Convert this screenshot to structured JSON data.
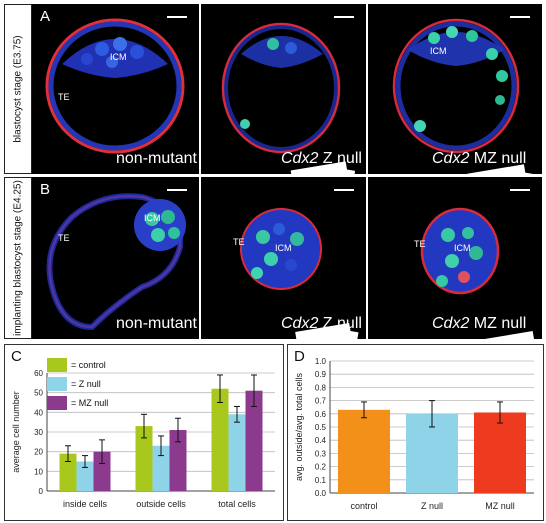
{
  "row_a": {
    "side_label": "blastocyst stage (E3.75)",
    "letter": "A",
    "panels": [
      {
        "caption_italic": "",
        "caption": "non-mutant",
        "labels": [
          "ICM",
          "TE"
        ]
      },
      {
        "caption_italic": "Cdx2",
        "caption": " Z null",
        "labels": []
      },
      {
        "caption_italic": "Cdx2",
        "caption": " MZ null",
        "labels": [
          "ICM"
        ]
      }
    ]
  },
  "row_b": {
    "side_label": "implanting blastocyst stage (E4.25)",
    "letter": "B",
    "panels": [
      {
        "caption_italic": "",
        "caption": "non-mutant",
        "labels": [
          "ICM",
          "TE"
        ]
      },
      {
        "caption_italic": "Cdx2",
        "caption": " Z null",
        "labels": [
          "TE",
          "ICM"
        ]
      },
      {
        "caption_italic": "Cdx2",
        "caption": " MZ null",
        "labels": [
          "TE",
          "ICM"
        ]
      }
    ]
  },
  "colors": {
    "control": "#a8c81e",
    "z_null": "#8fd3e8",
    "mz_null": "#8b3a8e",
    "d_control": "#f39019",
    "d_z": "#8fd3e8",
    "d_mz": "#ee3a1f"
  },
  "chart_data": [
    {
      "type": "bar",
      "letter": "C",
      "categories": [
        "inside cells",
        "outside cells",
        "total cells"
      ],
      "series": [
        {
          "name": "= control",
          "values": [
            19,
            33,
            52
          ],
          "errors": [
            4,
            6,
            7
          ]
        },
        {
          "name": "= Z null",
          "values": [
            15,
            23,
            39
          ],
          "errors": [
            3,
            5,
            4
          ]
        },
        {
          "name": "= MZ null",
          "values": [
            20,
            31,
            51
          ],
          "errors": [
            6,
            6,
            8
          ]
        }
      ],
      "ylabel": "average cell number",
      "ylim": [
        0,
        60
      ],
      "yticks": [
        "0",
        "10",
        "20",
        "30",
        "40",
        "50",
        "60"
      ],
      "grid": true
    },
    {
      "type": "bar",
      "letter": "D",
      "categories": [
        "control",
        "Z null",
        "MZ null"
      ],
      "values": [
        0.63,
        0.6,
        0.61
      ],
      "errors": [
        0.06,
        0.1,
        0.08
      ],
      "ylabel": "avg. outside/avg. total cells",
      "ylim": [
        0,
        1.0
      ],
      "yticks": [
        "0.0",
        "0.1",
        "0.2",
        "0.3",
        "0.4",
        "0.5",
        "0.6",
        "0.7",
        "0.8",
        "0.9",
        "1.0"
      ],
      "grid": true
    }
  ]
}
